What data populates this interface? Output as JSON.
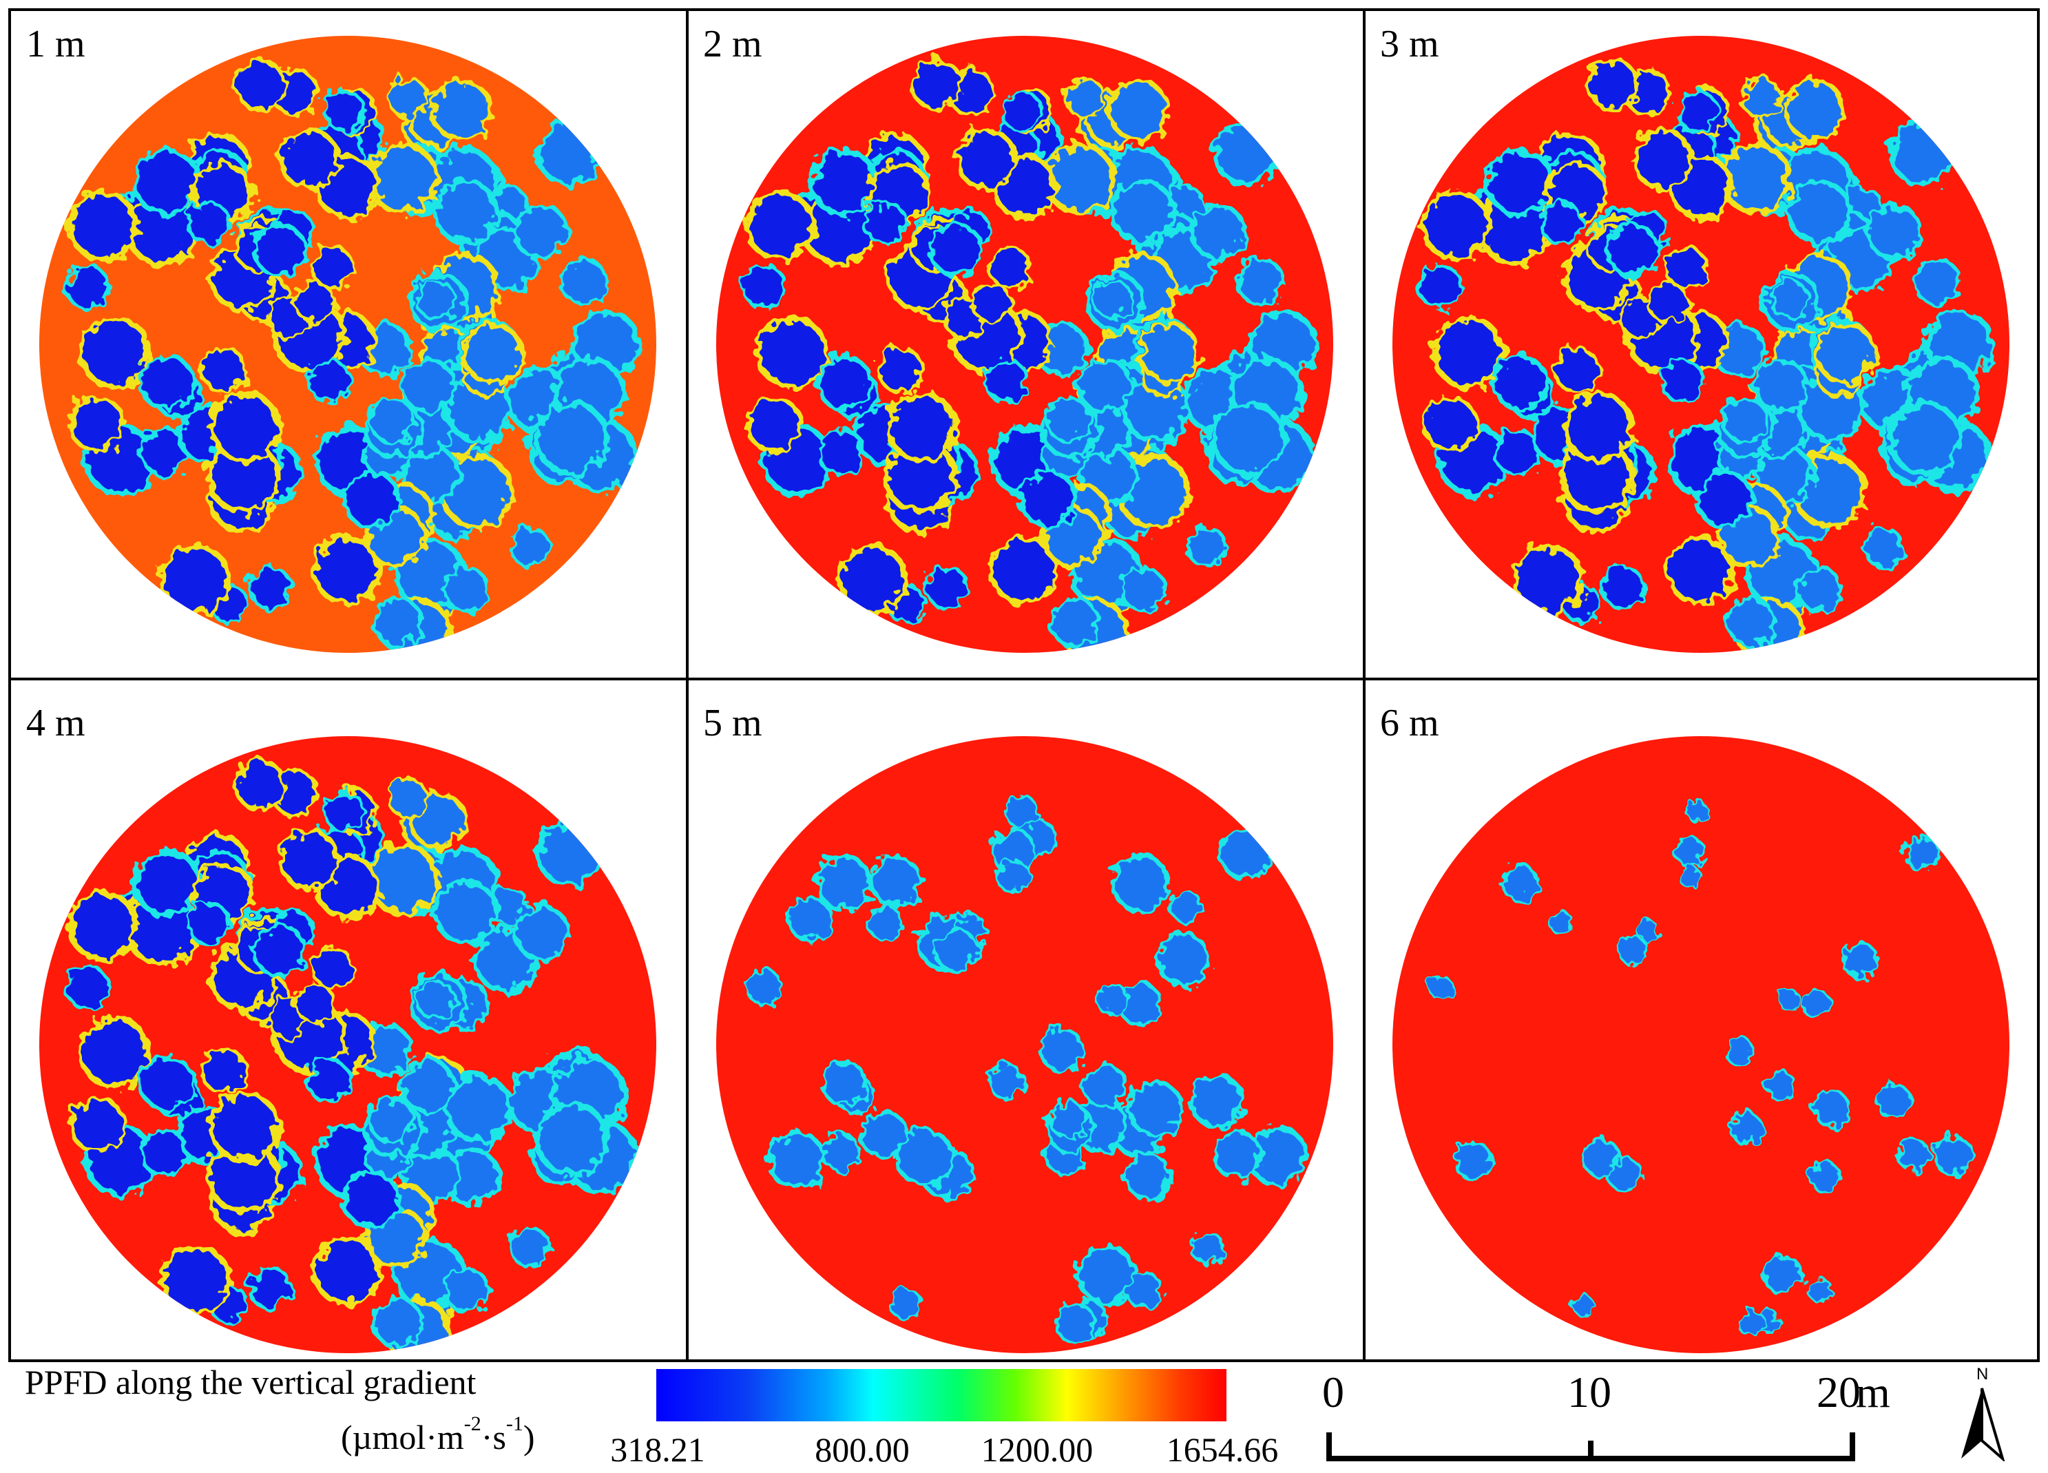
{
  "panels": [
    {
      "label": "1 m",
      "level": 1
    },
    {
      "label": "2 m",
      "level": 2
    },
    {
      "label": "3 m",
      "level": 3
    },
    {
      "label": "4 m",
      "level": 4
    },
    {
      "label": "5 m",
      "level": 5
    },
    {
      "label": "6 m",
      "level": 6
    }
  ],
  "legend": {
    "title": "PPFD along the vertical gradient",
    "unit_prefix": "(µmol·m",
    "unit_exp1": "-2",
    "unit_mid": "·s",
    "unit_exp2": "-1",
    "unit_suffix": ")",
    "min_label": "318.21",
    "tick1_label": "800.00",
    "tick2_label": "1200.00",
    "max_label": "1654.66",
    "colors": [
      "#0000ff",
      "#00a6ff",
      "#00ffff",
      "#00ff66",
      "#ffff00",
      "#ffa500",
      "#ff0000"
    ]
  },
  "scale_bar": {
    "label_0": "0",
    "label_10": "10",
    "label_20": "20",
    "unit": "m"
  },
  "north_arrow": {
    "label": "N",
    "icon": "north-arrow-icon"
  },
  "colors": {
    "low_blue": "#0a1fe6",
    "mid_blue": "#1e74f0",
    "edge_cyan": "#1ee6e6",
    "edge_yellow": "#f2e21e",
    "open_orange": "#ff5a0a",
    "open_red": "#ff1a0a"
  }
}
